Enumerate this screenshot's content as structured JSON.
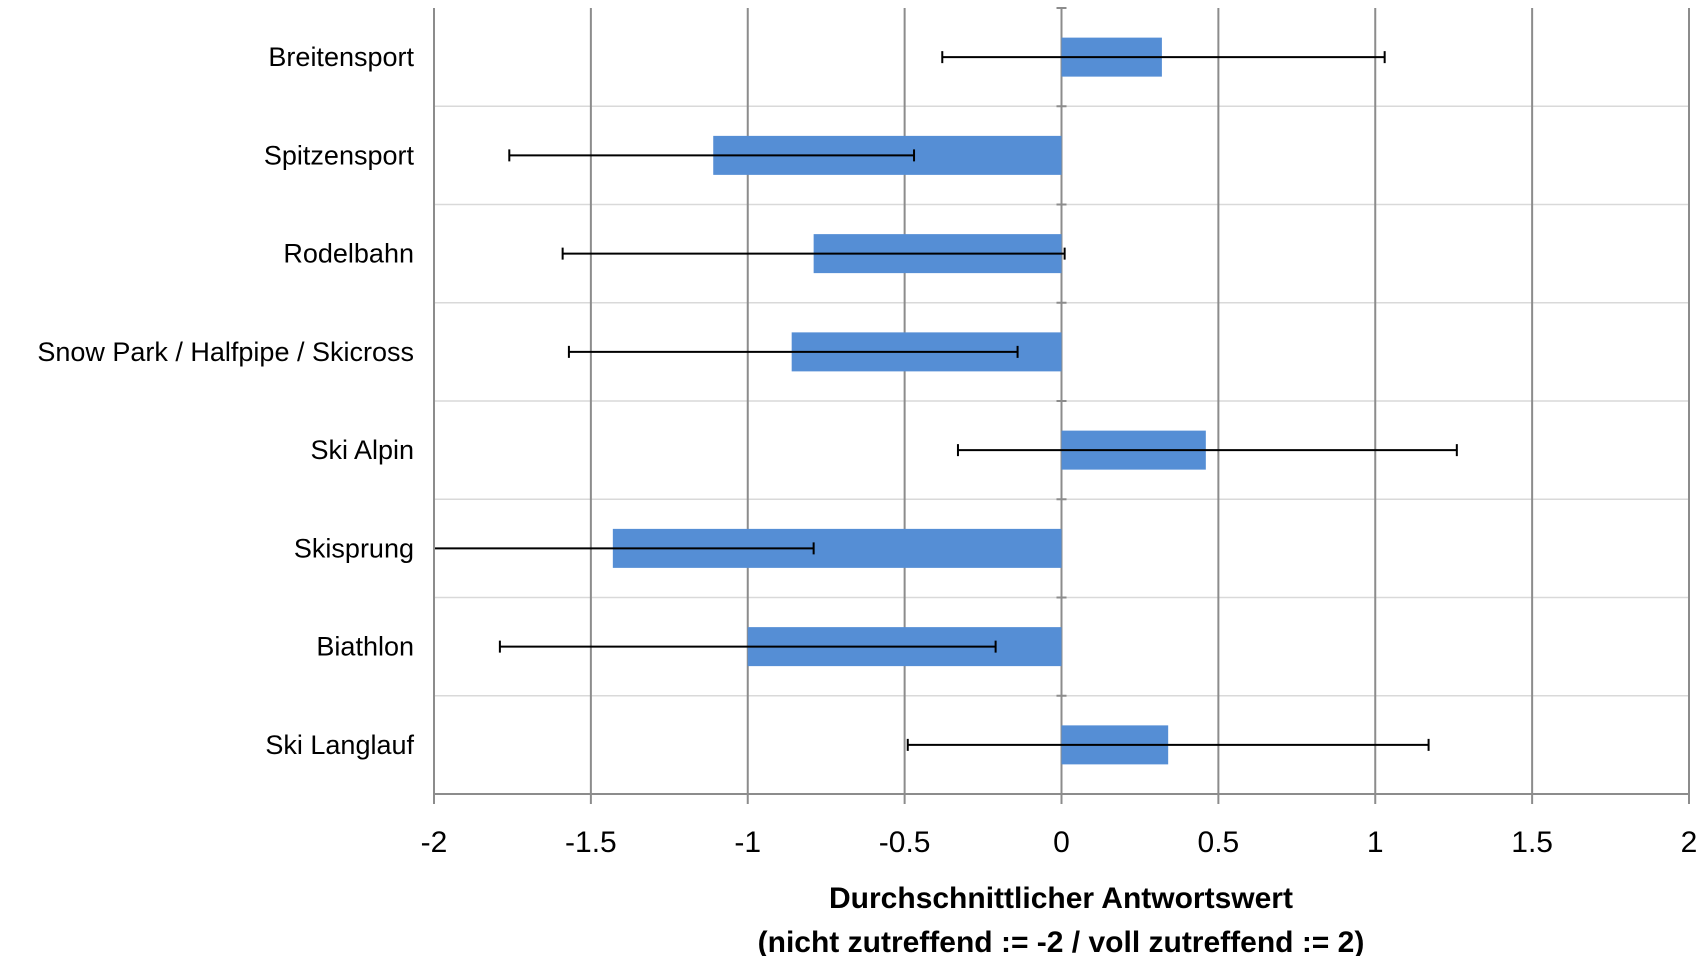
{
  "chart_data": {
    "type": "bar",
    "orientation": "horizontal",
    "categories": [
      "Breitensport",
      "Spitzensport",
      "Rodelbahn",
      "Snow Park / Halfpipe / Skicross",
      "Ski Alpin",
      "Skisprung",
      "Biathlon",
      "Ski Langlauf"
    ],
    "values": [
      0.32,
      -1.11,
      -0.79,
      -0.86,
      0.46,
      -1.43,
      -1.0,
      0.34
    ],
    "error_low": [
      -0.38,
      -1.76,
      -1.59,
      -1.57,
      -0.33,
      -2.0,
      -1.79,
      -0.49
    ],
    "error_high": [
      1.03,
      -0.47,
      0.01,
      -0.14,
      1.26,
      -0.79,
      -0.21,
      1.17
    ],
    "xticks": [
      "-2",
      "-1.5",
      "-1",
      "-0.5",
      "0",
      "0.5",
      "1",
      "1.5",
      "2"
    ],
    "xlim": [
      -2,
      2
    ],
    "xlabel_line1": "Durchschnittlicher Antwortswert",
    "xlabel_line2": "(nicht zutreffend := -2 / voll zutreffend := 2)",
    "bar_color": "#558ed5",
    "grid": true
  }
}
